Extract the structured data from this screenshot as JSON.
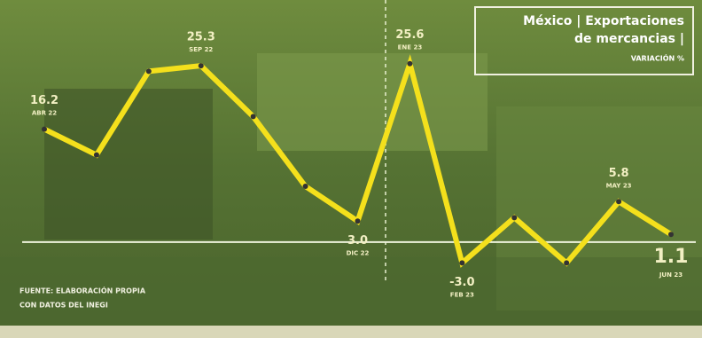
{
  "chart_data": {
    "type": "line",
    "title": [
      "México | Exportaciones",
      "de mercancias |"
    ],
    "subtitle": "VARIACIÓN %",
    "source": [
      "FUENTE: ELABORACIÓN PROPIA",
      "CON DATOS DEL INEGI"
    ],
    "categories": [
      "ABR 22",
      null,
      null,
      "SEP 22",
      null,
      null,
      "DIC 22",
      "ENE 23",
      "FEB 23",
      null,
      null,
      "MAY 23",
      "JUN 23"
    ],
    "values": [
      16.2,
      12.5,
      24.5,
      25.3,
      18,
      8,
      3.0,
      25.6,
      -3.0,
      3.5,
      -3.0,
      5.8,
      1.1
    ],
    "value_labels": [
      "16.2",
      null,
      null,
      "25.3",
      null,
      null,
      "3.0",
      "25.6",
      "-3.0",
      null,
      null,
      "5.8",
      "1.1"
    ],
    "color": "#f4e01c",
    "ylim": [
      -6,
      29
    ]
  }
}
